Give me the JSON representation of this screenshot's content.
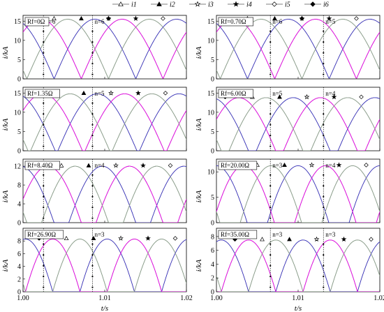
{
  "legend": [
    {
      "name": "i1",
      "marker": "triangle-open"
    },
    {
      "name": "i2",
      "marker": "triangle-filled"
    },
    {
      "name": "i3",
      "marker": "star-open"
    },
    {
      "name": "i4",
      "marker": "star-filled"
    },
    {
      "name": "i5",
      "marker": "diamond-open"
    },
    {
      "name": "i6",
      "marker": "diamond-filled"
    }
  ],
  "colors": [
    "#e41a1c",
    "#111111",
    "#2ca02c",
    "#1f3fd6",
    "#ff00ff",
    "#999999"
  ],
  "xlabel": "t/s",
  "ylabel": "i/kA",
  "xticks": [
    "1.00",
    "1.01",
    "1.02"
  ],
  "chart_data": [
    {
      "type": "line",
      "label": "Rf=0Ω",
      "peak": 15.5,
      "yticks": [
        0,
        5,
        10,
        15
      ],
      "ylim": [
        0,
        16.5
      ],
      "vlines": [
        1.0025,
        1.0085
      ],
      "annotations": [
        "n=6",
        "n=6"
      ],
      "phase_shift": 0.0,
      "conduction": 0.0
    },
    {
      "type": "line",
      "label": "Rf=0.70Ω",
      "peak": 15.5,
      "yticks": [
        0,
        5,
        10,
        15
      ],
      "ylim": [
        0,
        16.5
      ],
      "vlines": [
        1.0066,
        1.0131
      ],
      "annotations": [
        "n=6",
        "n=5"
      ],
      "phase_shift": 0.0,
      "conduction": 0.0
    },
    {
      "type": "line",
      "label": "Rf=1.35Ω",
      "peak": 14.8,
      "yticks": [
        0,
        5,
        10,
        15
      ],
      "ylim": [
        0,
        16.5
      ],
      "vlines": [
        1.0025,
        1.0085
      ],
      "annotations": [
        "n=5",
        "n=5"
      ],
      "phase_shift": 0.0003,
      "conduction": 0.05
    },
    {
      "type": "line",
      "label": "Rf=6.00Ω",
      "peak": 13.8,
      "yticks": [
        0,
        5,
        10,
        15
      ],
      "ylim": [
        0,
        16.5
      ],
      "vlines": [
        1.0066,
        1.0131
      ],
      "annotations": [
        "n=5",
        "n=4"
      ],
      "phase_shift": 0.0006,
      "conduction": 0.15
    },
    {
      "type": "line",
      "label": "Rf=8.40Ω",
      "peak": 12.0,
      "yticks": [
        0,
        4,
        8,
        12
      ],
      "ylim": [
        0,
        13.5
      ],
      "vlines": [
        1.0025,
        1.0085
      ],
      "annotations": [
        "n=4",
        "n=4"
      ],
      "phase_shift": 0.0009,
      "conduction": 0.28
    },
    {
      "type": "line",
      "label": "Rf=20.00Ω",
      "peak": 11.2,
      "yticks": [
        0,
        5,
        10
      ],
      "ylim": [
        0,
        12.5
      ],
      "vlines": [
        1.0066,
        1.0131
      ],
      "annotations": [
        "n=3",
        "n=4"
      ],
      "phase_shift": 0.0012,
      "conduction": 0.38
    },
    {
      "type": "line",
      "label": "Rf=26.90Ω",
      "peak": 8.3,
      "yticks": [
        0,
        2,
        4,
        6,
        8
      ],
      "ylim": [
        0,
        10
      ],
      "vlines": [
        1.0025,
        1.0085
      ],
      "annotations": [
        "n=3",
        "n=3"
      ],
      "phase_shift": 0.0015,
      "conduction": 0.5
    },
    {
      "type": "line",
      "label": "Rf=35.00Ω",
      "peak": 7.5,
      "yticks": [
        0,
        2,
        4,
        6,
        8
      ],
      "ylim": [
        0,
        9.2
      ],
      "vlines": [
        1.0066,
        1.0131
      ],
      "annotations": [
        "n=3",
        "n=3"
      ],
      "phase_shift": 0.0018,
      "conduction": 0.5
    }
  ]
}
